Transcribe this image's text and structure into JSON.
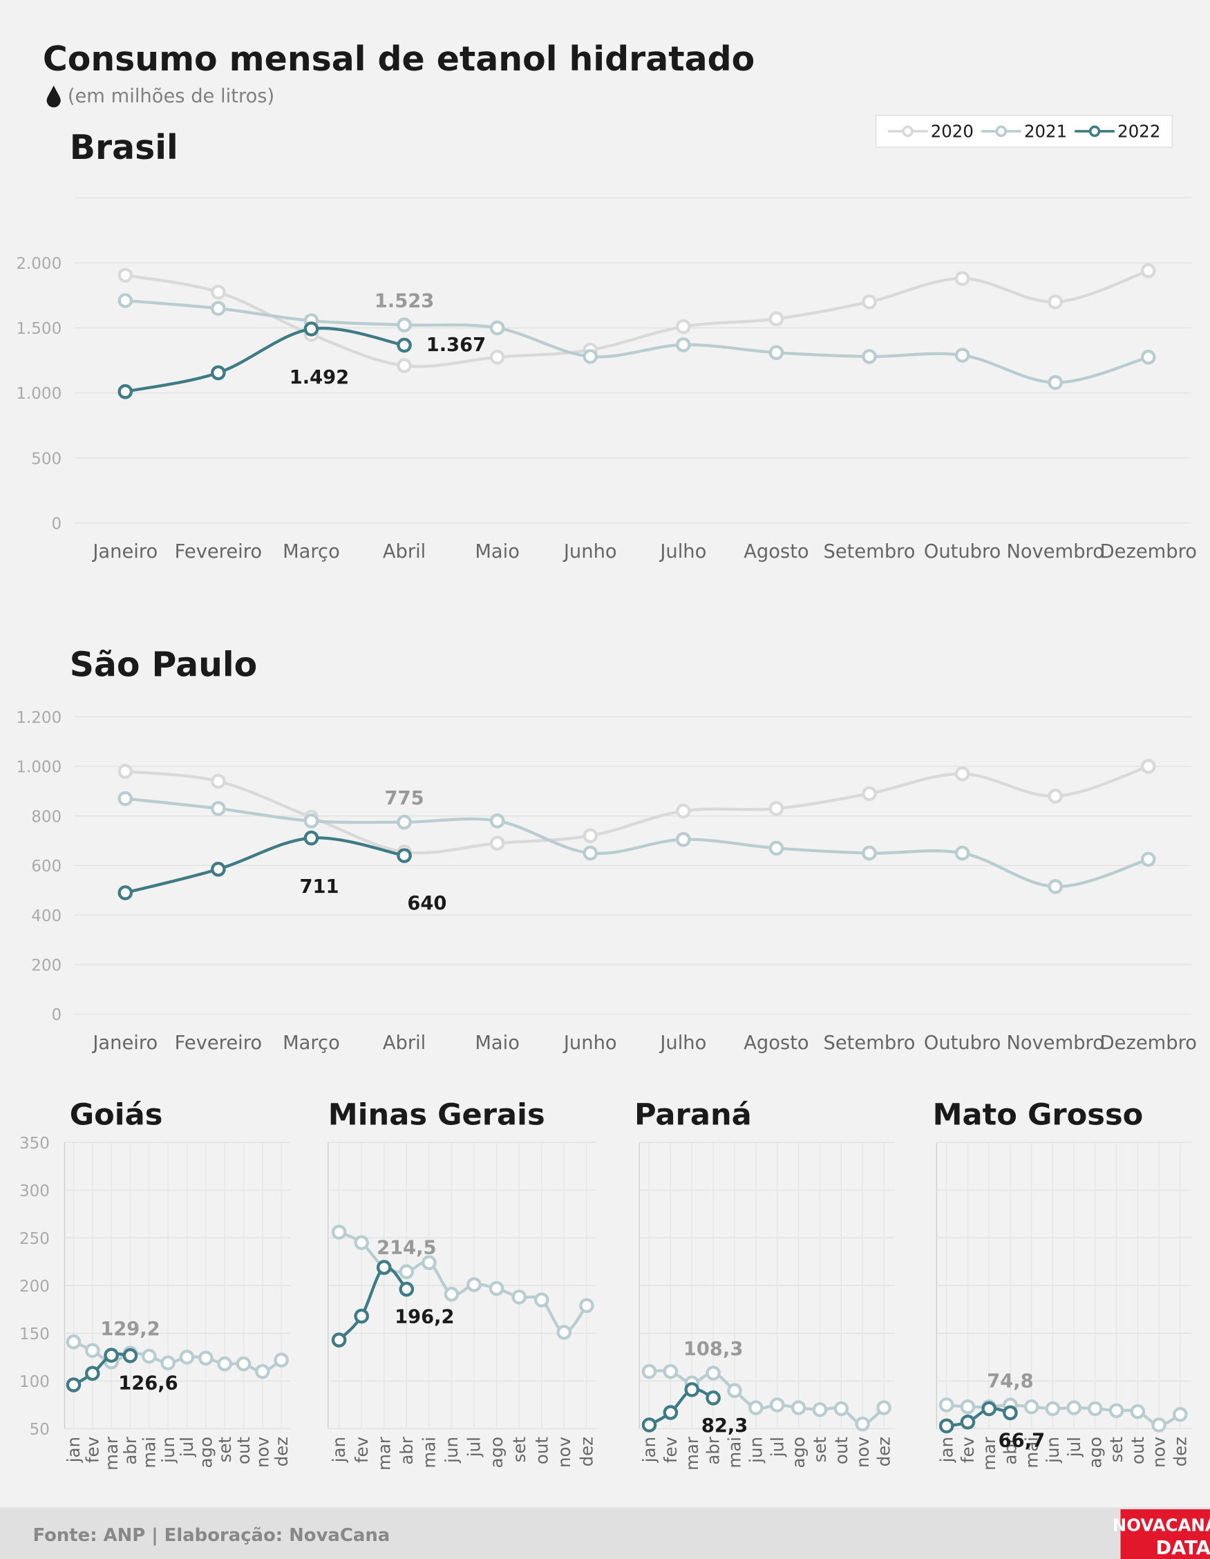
{
  "title": "Consumo mensal de etanol hidratado",
  "subtitle": "(em milhões de litros)",
  "source": "Fonte: ANP | Elaboração: NovaCana",
  "logo": [
    "NOVACANA",
    "DATA"
  ],
  "chart_data": [
    {
      "type": "line",
      "title": "Brasil",
      "categories": [
        "Janeiro",
        "Fevereiro",
        "Março",
        "Abril",
        "Maio",
        "Junho",
        "Julho",
        "Agosto",
        "Setembro",
        "Outubro",
        "Novembro",
        "Dezembro"
      ],
      "ylim": [
        0,
        2500
      ],
      "yticks": [
        0,
        500,
        {
          "value": 1000,
          "label": "1.000"
        },
        {
          "value": 1500,
          "label": "1.500"
        },
        {
          "value": 2000,
          "label": "2.000"
        }
      ],
      "legend": "upper right",
      "series": [
        {
          "name": "2020",
          "color": "#d9d9d9",
          "values": [
            1905,
            1775,
            1450,
            1210,
            1275,
            1330,
            1510,
            1570,
            1700,
            1880,
            1700,
            1940
          ]
        },
        {
          "name": "2021",
          "color": "#b9cdd0",
          "values": [
            1710,
            1650,
            1555,
            1523,
            1500,
            1280,
            1370,
            1310,
            1280,
            1290,
            1080,
            1275
          ],
          "value_labels": [
            null,
            null,
            null,
            "1.523",
            null,
            null,
            null,
            null,
            null,
            null,
            null,
            null
          ]
        },
        {
          "name": "2022",
          "color": "#3f7b85",
          "values": [
            1010,
            1155,
            1492,
            1367,
            null,
            null,
            null,
            null,
            null,
            null,
            null,
            null
          ],
          "value_labels": [
            null,
            null,
            "1.492",
            "1.367",
            null,
            null,
            null,
            null,
            null,
            null,
            null,
            null
          ]
        }
      ]
    },
    {
      "type": "line",
      "title": "São Paulo",
      "categories": [
        "Janeiro",
        "Fevereiro",
        "Março",
        "Abril",
        "Maio",
        "Junho",
        "Julho",
        "Agosto",
        "Setembro",
        "Outubro",
        "Novembro",
        "Dezembro"
      ],
      "ylim": [
        0,
        1200
      ],
      "yticks": [
        0,
        200,
        400,
        600,
        800,
        {
          "value": 1000,
          "label": "1.000"
        },
        {
          "value": 1200,
          "label": "1.200"
        }
      ],
      "series": [
        {
          "name": "2020",
          "color": "#d9d9d9",
          "values": [
            980,
            940,
            795,
            655,
            690,
            720,
            820,
            830,
            890,
            970,
            880,
            1000
          ]
        },
        {
          "name": "2021",
          "color": "#b9cdd0",
          "values": [
            870,
            830,
            780,
            775,
            780,
            650,
            705,
            670,
            650,
            650,
            515,
            625
          ],
          "value_labels": [
            null,
            null,
            null,
            "775",
            null,
            null,
            null,
            null,
            null,
            null,
            null,
            null
          ]
        },
        {
          "name": "2022",
          "color": "#3f7b85",
          "values": [
            490,
            585,
            711,
            640,
            null,
            null,
            null,
            null,
            null,
            null,
            null,
            null
          ],
          "value_labels": [
            null,
            null,
            "711",
            "640",
            null,
            null,
            null,
            null,
            null,
            null,
            null,
            null
          ]
        }
      ]
    },
    {
      "type": "line",
      "title": "Goiás",
      "categories": [
        "jan",
        "fev",
        "mar",
        "abr",
        "mai",
        "jun",
        "jul",
        "ago",
        "set",
        "out",
        "nov",
        "dez"
      ],
      "ylim": [
        50,
        350
      ],
      "yticks": [
        50,
        100,
        150,
        200,
        250,
        300,
        350
      ],
      "show_ytick_labels": true,
      "series": [
        {
          "name": "2021",
          "color": "#b9cdd0",
          "values": [
            141,
            132,
            120,
            129.2,
            126,
            119,
            125,
            124,
            118,
            118,
            110,
            122
          ],
          "value_labels": [
            null,
            null,
            null,
            "129,2",
            null,
            null,
            null,
            null,
            null,
            null,
            null,
            null
          ]
        },
        {
          "name": "2022",
          "color": "#3f7b85",
          "values": [
            96,
            108,
            127,
            126.6,
            null,
            null,
            null,
            null,
            null,
            null,
            null,
            null
          ],
          "value_labels": [
            null,
            null,
            null,
            "126,6",
            null,
            null,
            null,
            null,
            null,
            null,
            null,
            null
          ]
        }
      ]
    },
    {
      "type": "line",
      "title": "Minas Gerais",
      "categories": [
        "jan",
        "fev",
        "mar",
        "abr",
        "mai",
        "jun",
        "jul",
        "ago",
        "set",
        "out",
        "nov",
        "dez"
      ],
      "ylim": [
        50,
        350
      ],
      "yticks": [
        50,
        100,
        150,
        200,
        250,
        300,
        350
      ],
      "show_ytick_labels": false,
      "series": [
        {
          "name": "2021",
          "color": "#b9cdd0",
          "values": [
            256,
            245,
            219,
            214.5,
            224,
            191,
            201,
            197,
            188,
            185,
            151,
            179
          ],
          "value_labels": [
            null,
            null,
            null,
            "214,5",
            null,
            null,
            null,
            null,
            null,
            null,
            null,
            null
          ]
        },
        {
          "name": "2022",
          "color": "#3f7b85",
          "values": [
            143,
            168,
            219,
            196.2,
            null,
            null,
            null,
            null,
            null,
            null,
            null,
            null
          ],
          "value_labels": [
            null,
            null,
            null,
            "196,2",
            null,
            null,
            null,
            null,
            null,
            null,
            null,
            null
          ]
        }
      ]
    },
    {
      "type": "line",
      "title": "Paraná",
      "categories": [
        "jan",
        "fev",
        "mar",
        "abr",
        "mai",
        "jun",
        "jul",
        "ago",
        "set",
        "out",
        "nov",
        "dez"
      ],
      "ylim": [
        50,
        350
      ],
      "yticks": [
        50,
        100,
        150,
        200,
        250,
        300,
        350
      ],
      "show_ytick_labels": false,
      "series": [
        {
          "name": "2021",
          "color": "#b9cdd0",
          "values": [
            110,
            110,
            98,
            108.3,
            90,
            72,
            75,
            72,
            70,
            71,
            55,
            72
          ],
          "value_labels": [
            null,
            null,
            null,
            "108,3",
            null,
            null,
            null,
            null,
            null,
            null,
            null,
            null
          ]
        },
        {
          "name": "2022",
          "color": "#3f7b85",
          "values": [
            54,
            67,
            91,
            82.3,
            null,
            null,
            null,
            null,
            null,
            null,
            null,
            null
          ],
          "value_labels": [
            null,
            null,
            null,
            "82,3",
            null,
            null,
            null,
            null,
            null,
            null,
            null,
            null
          ]
        }
      ]
    },
    {
      "type": "line",
      "title": "Mato Grosso",
      "categories": [
        "jan",
        "fev",
        "mar",
        "abr",
        "mai",
        "jun",
        "jul",
        "ago",
        "set",
        "out",
        "nov",
        "dez"
      ],
      "ylim": [
        50,
        350
      ],
      "yticks": [
        50,
        100,
        150,
        200,
        250,
        300,
        350
      ],
      "show_ytick_labels": false,
      "series": [
        {
          "name": "2021",
          "color": "#b9cdd0",
          "values": [
            75,
            73,
            73,
            74.8,
            73,
            71,
            72,
            71,
            69,
            68,
            54,
            65
          ],
          "value_labels": [
            null,
            null,
            null,
            "74,8",
            null,
            null,
            null,
            null,
            null,
            null,
            null,
            null
          ]
        },
        {
          "name": "2022",
          "color": "#3f7b85",
          "values": [
            53,
            57,
            71,
            66.7,
            null,
            null,
            null,
            null,
            null,
            null,
            null,
            null
          ],
          "value_labels": [
            null,
            null,
            null,
            "66,7",
            null,
            null,
            null,
            null,
            null,
            null,
            null,
            null
          ]
        }
      ]
    }
  ]
}
